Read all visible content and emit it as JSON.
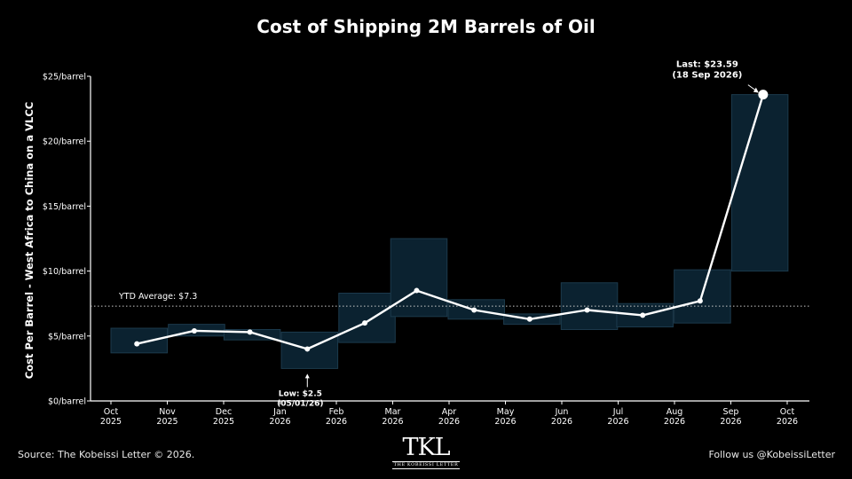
{
  "chart_data": {
    "type": "line",
    "title": "Cost of Shipping 2M Barrels of Oil",
    "ylabel": "Cost Per Barrel - West Africa to China on a VLCC",
    "xlabel": "",
    "ylim": [
      0,
      25
    ],
    "yticks": [
      {
        "value": 0,
        "label": "$0/barrel"
      },
      {
        "value": 5,
        "label": "$5/barrel"
      },
      {
        "value": 10,
        "label": "$10/barrel"
      },
      {
        "value": 15,
        "label": "$15/barrel"
      },
      {
        "value": 20,
        "label": "$20/barrel"
      },
      {
        "value": 25,
        "label": "$25/barrel"
      }
    ],
    "xticks": [
      {
        "line1": "Oct",
        "line2": "2025"
      },
      {
        "line1": "Nov",
        "line2": "2025"
      },
      {
        "line1": "Dec",
        "line2": "2025"
      },
      {
        "line1": "Jan",
        "line2": "2026"
      },
      {
        "line1": "Feb",
        "line2": "2026"
      },
      {
        "line1": "Mar",
        "line2": "2026"
      },
      {
        "line1": "Apr",
        "line2": "2026"
      },
      {
        "line1": "May",
        "line2": "2026"
      },
      {
        "line1": "Jun",
        "line2": "2026"
      },
      {
        "line1": "Jul",
        "line2": "2026"
      },
      {
        "line1": "Aug",
        "line2": "2026"
      },
      {
        "line1": "Sep",
        "line2": "2026"
      },
      {
        "line1": "Oct",
        "line2": "2026"
      }
    ],
    "series": [
      {
        "values": [
          {
            "x": "2025-10-15",
            "y": 4.4
          },
          {
            "x": "2025-11-15",
            "y": 5.4
          },
          {
            "x": "2025-12-15",
            "y": 5.3
          },
          {
            "x": "2026-01-15",
            "y": 4.0
          },
          {
            "x": "2026-02-15",
            "y": 6.0
          },
          {
            "x": "2026-03-15",
            "y": 8.5
          },
          {
            "x": "2026-04-15",
            "y": 7.0
          },
          {
            "x": "2026-05-15",
            "y": 6.3
          },
          {
            "x": "2026-06-15",
            "y": 7.0
          },
          {
            "x": "2026-07-15",
            "y": 6.6
          },
          {
            "x": "2026-08-15",
            "y": 7.7
          },
          {
            "x": "2026-09-18",
            "y": 23.59
          }
        ]
      }
    ],
    "monthly_ranges": [
      {
        "month": "2025-10",
        "low": 3.7,
        "high": 5.6
      },
      {
        "month": "2025-11",
        "low": 5.0,
        "high": 5.9
      },
      {
        "month": "2025-12",
        "low": 4.7,
        "high": 5.5
      },
      {
        "month": "2026-01",
        "low": 2.5,
        "high": 5.3
      },
      {
        "month": "2026-02",
        "low": 4.5,
        "high": 8.3
      },
      {
        "month": "2026-03",
        "low": 6.5,
        "high": 12.5
      },
      {
        "month": "2026-04",
        "low": 6.3,
        "high": 7.8
      },
      {
        "month": "2026-05",
        "low": 5.9,
        "high": 6.7
      },
      {
        "month": "2026-06",
        "low": 5.5,
        "high": 9.1
      },
      {
        "month": "2026-07",
        "low": 5.7,
        "high": 7.5
      },
      {
        "month": "2026-08",
        "low": 6.0,
        "high": 10.1
      },
      {
        "month": "2026-09",
        "low": 10.0,
        "high": 23.59
      }
    ],
    "reference_line": {
      "value": 7.3,
      "label": "YTD Average: $7.3"
    },
    "annotations": {
      "low": {
        "line1": "Low: $2.5",
        "line2": "(05/01/26)",
        "x": "2026-01-15",
        "y": 2.5
      },
      "last": {
        "line1": "Last: $23.59",
        "line2": "(18 Sep 2026)",
        "x": "2026-09-18",
        "y": 23.59
      }
    },
    "grid": false,
    "legend": "none",
    "colors": {
      "background": "#000000",
      "line": "#ffffff",
      "range_fill": "#0b2230",
      "range_stroke": "#1c3a4c",
      "text": "#ffffff"
    }
  },
  "footer": {
    "source": "Source: The Kobeissi Letter © 2026.",
    "follow": "Follow us @KobeissiLetter",
    "logo_mark": "TKL",
    "logo_sub": "THE KOBEISSI LETTER"
  }
}
